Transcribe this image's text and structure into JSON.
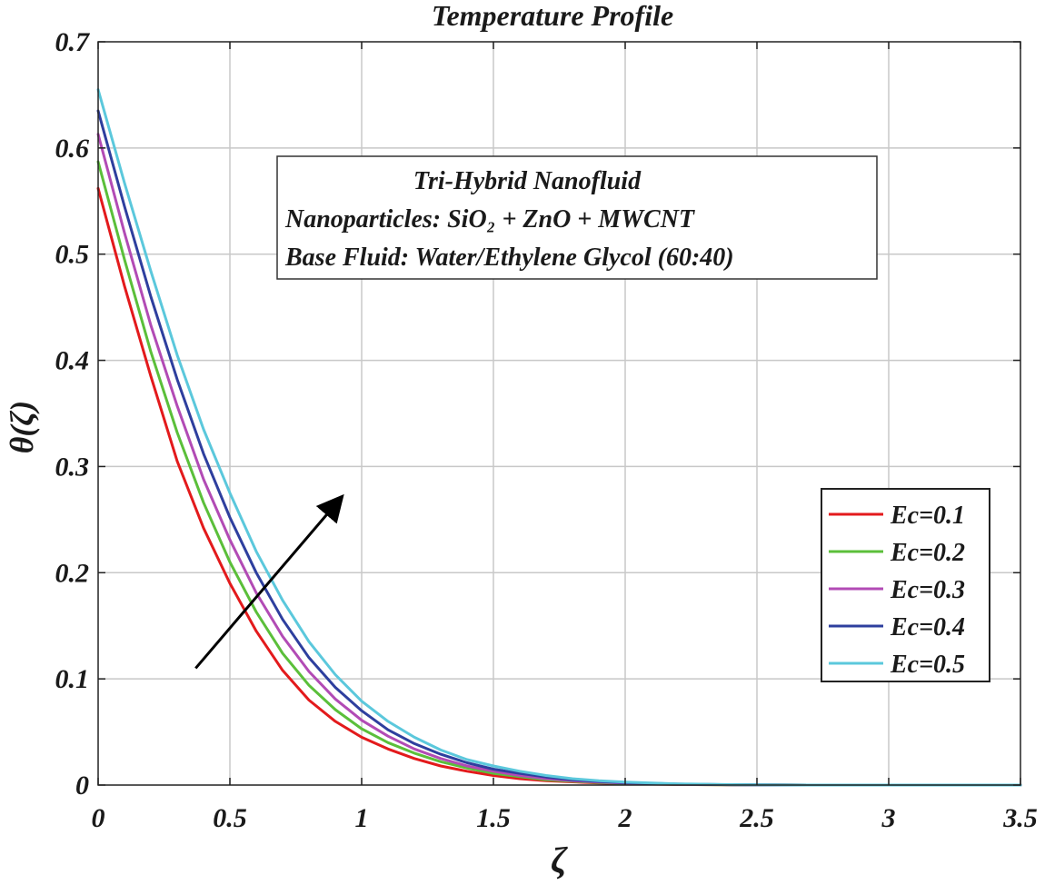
{
  "chart_data": {
    "type": "line",
    "title": "Temperature Profile",
    "xlabel": "ζ",
    "ylabel": "θ(ζ)",
    "xlim": [
      0,
      3.5
    ],
    "ylim": [
      0,
      0.7
    ],
    "xticks": [
      0,
      0.5,
      1,
      1.5,
      2,
      2.5,
      3,
      3.5
    ],
    "yticks": [
      0,
      0.1,
      0.2,
      0.3,
      0.4,
      0.5,
      0.6,
      0.7
    ],
    "xtick_labels": [
      "0",
      "0.5",
      "1",
      "1.5",
      "2",
      "2.5",
      "3",
      "3.5"
    ],
    "ytick_labels": [
      "0",
      "0.1",
      "0.2",
      "0.3",
      "0.4",
      "0.5",
      "0.6",
      "0.7"
    ],
    "grid": true,
    "legend_position": "center-right",
    "annotation": {
      "lines": [
        "Tri-Hybrid Nanofluid",
        "Nanoparticles:  SiO₂ + ZnO + MWCNT",
        "Base Fluid:  Water/Ethylene Glycol (60:40)"
      ]
    },
    "arrow": {
      "from": [
        0.37,
        0.11
      ],
      "to": [
        0.92,
        0.27
      ],
      "meaning": "increasing Ec"
    },
    "x": [
      0,
      0.1,
      0.2,
      0.3,
      0.4,
      0.5,
      0.6,
      0.7,
      0.8,
      0.9,
      1.0,
      1.1,
      1.2,
      1.3,
      1.4,
      1.5,
      1.6,
      1.7,
      1.8,
      1.9,
      2.0,
      2.2,
      2.4,
      2.6,
      2.8,
      3.0,
      3.2,
      3.5
    ],
    "series": [
      {
        "name": "Ec=0.1",
        "color": "#e31a1c",
        "values": [
          0.562,
          0.47,
          0.385,
          0.305,
          0.242,
          0.19,
          0.145,
          0.108,
          0.08,
          0.06,
          0.045,
          0.034,
          0.025,
          0.018,
          0.013,
          0.009,
          0.006,
          0.004,
          0.003,
          0.002,
          0.0012,
          0.0005,
          0.0002,
          0.0001,
          0.0,
          0.0,
          0.0,
          0.0
        ]
      },
      {
        "name": "Ec=0.2",
        "color": "#5bbf3a",
        "values": [
          0.587,
          0.495,
          0.408,
          0.332,
          0.266,
          0.21,
          0.163,
          0.124,
          0.094,
          0.071,
          0.053,
          0.04,
          0.03,
          0.022,
          0.016,
          0.011,
          0.008,
          0.005,
          0.0035,
          0.0023,
          0.0015,
          0.0006,
          0.0002,
          0.0001,
          0.0,
          0.0,
          0.0,
          0.0
        ]
      },
      {
        "name": "Ec=0.3",
        "color": "#b24bb5",
        "values": [
          0.613,
          0.52,
          0.433,
          0.357,
          0.288,
          0.231,
          0.181,
          0.14,
          0.107,
          0.081,
          0.061,
          0.046,
          0.034,
          0.025,
          0.018,
          0.013,
          0.009,
          0.006,
          0.004,
          0.0027,
          0.0018,
          0.0007,
          0.0003,
          0.0001,
          0.0,
          0.0,
          0.0,
          0.0
        ]
      },
      {
        "name": "Ec=0.4",
        "color": "#2e3f9e",
        "values": [
          0.635,
          0.545,
          0.46,
          0.382,
          0.312,
          0.252,
          0.2,
          0.156,
          0.12,
          0.092,
          0.07,
          0.052,
          0.039,
          0.029,
          0.021,
          0.015,
          0.011,
          0.0075,
          0.005,
          0.0033,
          0.0022,
          0.0009,
          0.0003,
          0.0001,
          0.0,
          0.0,
          0.0,
          0.0
        ]
      },
      {
        "name": "Ec=0.5",
        "color": "#5bc8dc",
        "values": [
          0.655,
          0.567,
          0.484,
          0.405,
          0.335,
          0.275,
          0.22,
          0.174,
          0.135,
          0.104,
          0.079,
          0.06,
          0.045,
          0.033,
          0.024,
          0.018,
          0.013,
          0.009,
          0.006,
          0.004,
          0.0027,
          0.0011,
          0.0004,
          0.0001,
          0.0,
          0.0,
          0.0,
          0.0
        ]
      }
    ]
  }
}
